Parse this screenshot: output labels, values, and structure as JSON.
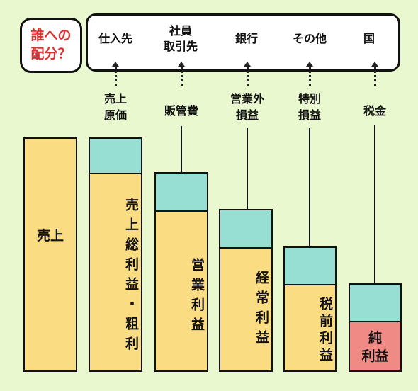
{
  "who_box": {
    "line1": "誰への",
    "line2": "配分？"
  },
  "recipients": [
    {
      "line1": "仕入先",
      "line2": ""
    },
    {
      "line1": "社員",
      "line2": "取引先"
    },
    {
      "line1": "銀行",
      "line2": ""
    },
    {
      "line1": "その他",
      "line2": ""
    },
    {
      "line1": "国",
      "line2": ""
    }
  ],
  "costs": [
    {
      "line1": "売上",
      "line2": "原価"
    },
    {
      "line1": "販管費",
      "line2": ""
    },
    {
      "line1": "営業外",
      "line2": "損益"
    },
    {
      "line1": "特別",
      "line2": "損益"
    },
    {
      "line1": "税金",
      "line2": ""
    }
  ],
  "bars": {
    "sales": "売上",
    "gross_profit": "売上総利益・粗利",
    "operating_profit": "営業利益",
    "ordinary_profit": "経常利益",
    "pretax_profit": "税前利益",
    "net_profit_line1": "純",
    "net_profit_line2": "利益"
  },
  "colors": {
    "background": "#e9f8cf",
    "profit_bar": "#fadc82",
    "cost_segment": "#96dfd2",
    "net_profit": "#f08a84",
    "who_text": "#e03030"
  }
}
